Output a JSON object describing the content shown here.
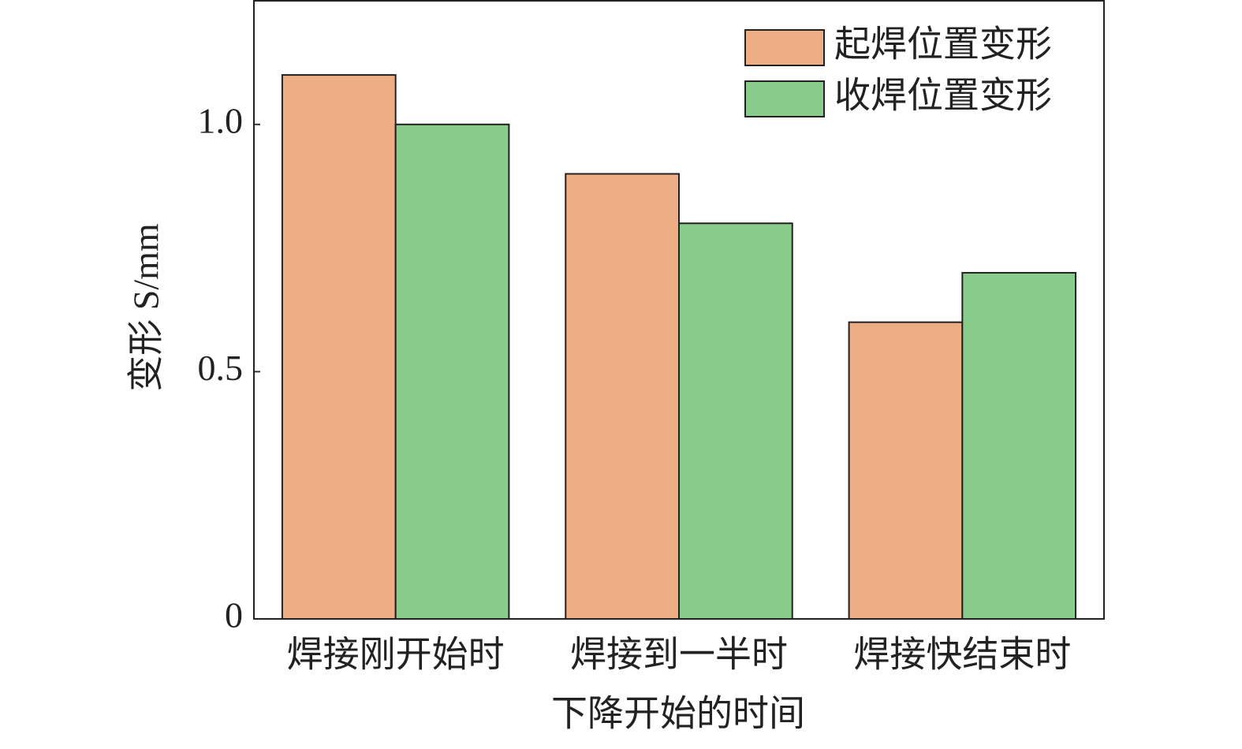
{
  "chart_data": {
    "type": "bar",
    "x_label": "下降开始的时间",
    "y_label": "变形 S/mm",
    "categories": [
      "焊接刚开始时",
      "焊接到一半时",
      "焊接快结束时"
    ],
    "series": [
      {
        "name": "起焊位置变形",
        "color": "#edae86",
        "values": [
          1.1,
          0.9,
          0.6
        ]
      },
      {
        "name": "收焊位置变形",
        "color": "#89cb8a",
        "values": [
          1.0,
          0.8,
          0.7
        ]
      }
    ],
    "ylim": [
      0,
      1.25
    ],
    "yticks": [
      0,
      0.5,
      {
        "value": 1,
        "label": "1.0"
      }
    ],
    "legend": "upper right"
  }
}
